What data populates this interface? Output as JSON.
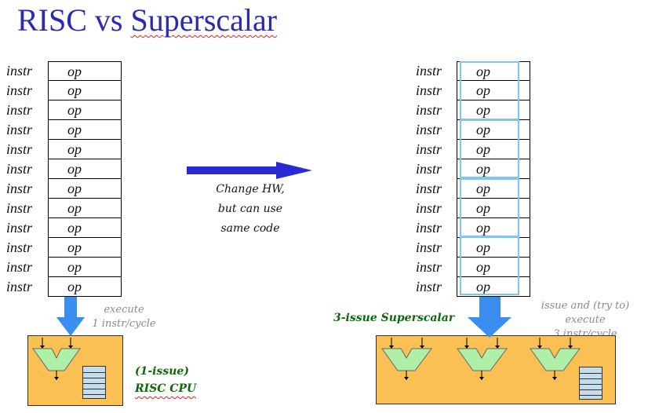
{
  "title": {
    "part1": "RISC vs ",
    "part2": "Superscalar"
  },
  "instr_label": "instr",
  "op_label": "op",
  "row_count": 12,
  "middle_text": [
    "Change HW,",
    "but can use",
    "same code"
  ],
  "left": {
    "note": [
      "execute",
      "1 instr/cycle"
    ],
    "cpu_label": [
      "(1-issue)",
      "RISC CPU"
    ]
  },
  "right": {
    "note": [
      "issue and (try to) execute",
      "3 instr/cycle"
    ],
    "cpu_label": "3-issue Superscalar"
  },
  "colors": {
    "title": "#2a2ab4",
    "arrow_big": "#2a2ad4",
    "arrow_down": "#3a8ef0",
    "cpu_fill": "#fbc054",
    "alu_fill": "#aef0a8",
    "regfile_fill": "#c4dcec",
    "group_border": "#7fc6ea",
    "green_text": "#0a6a0a",
    "note_text": "#8a8a8a"
  }
}
